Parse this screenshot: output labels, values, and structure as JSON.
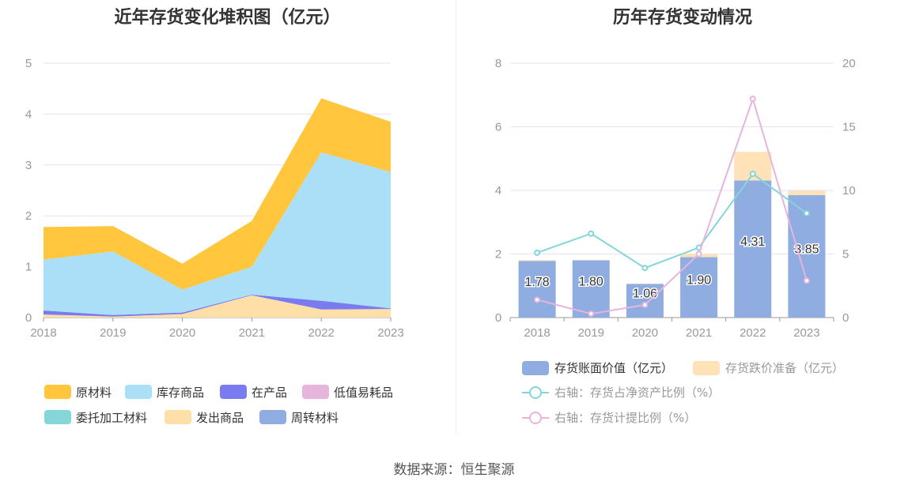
{
  "source_note": "数据来源：恒生聚源",
  "chart_data": [
    {
      "type": "area",
      "stacked": true,
      "title": "近年存货变化堆积图（亿元）",
      "x": [
        "2018",
        "2019",
        "2020",
        "2021",
        "2022",
        "2023"
      ],
      "ylim": [
        0,
        5
      ],
      "yticks": [
        "0",
        "1",
        "2",
        "3",
        "4",
        "5"
      ],
      "grid": true,
      "legend_position": "bottom",
      "series": [
        {
          "name": "发出商品",
          "color": "#FFDFA8",
          "values": [
            0.06,
            0.02,
            0.07,
            0.44,
            0.16,
            0.17
          ]
        },
        {
          "name": "在产品",
          "color": "#7B7BF0",
          "values": [
            0.08,
            0.03,
            0.03,
            0.01,
            0.17,
            0.01
          ]
        },
        {
          "name": "低值易耗品",
          "color": "#E7B5DB",
          "values": [
            0.0,
            0.0,
            0.0,
            0.0,
            0.0,
            0.0
          ]
        },
        {
          "name": "库存商品",
          "color": "#ABDFF7",
          "values": [
            1.0,
            1.25,
            0.45,
            0.55,
            2.92,
            2.68
          ]
        },
        {
          "name": "原材料",
          "color": "#FFC63E",
          "values": [
            0.64,
            0.5,
            0.51,
            0.9,
            1.06,
            0.99
          ]
        },
        {
          "name": "委托加工材料",
          "color": "#84D6D8",
          "values": [
            0.0,
            0.0,
            0.0,
            0.0,
            0.0,
            0.0
          ]
        },
        {
          "name": "周转材料",
          "color": "#8FADE0",
          "values": [
            0.0,
            0.0,
            0.0,
            0.0,
            0.0,
            0.0
          ]
        }
      ],
      "legend_order": [
        "原材料",
        "库存商品",
        "在产品",
        "低值易耗品",
        "委托加工材料",
        "发出商品",
        "周转材料"
      ]
    },
    {
      "type": "bar",
      "stacked": true,
      "title": "历年存货变动情况",
      "x": [
        "2018",
        "2019",
        "2020",
        "2021",
        "2022",
        "2023"
      ],
      "ylim": [
        0,
        8
      ],
      "yticks": [
        "0",
        "2",
        "4",
        "6",
        "8"
      ],
      "y2lim": [
        0,
        20
      ],
      "y2ticks": [
        "0",
        "5",
        "10",
        "15",
        "20"
      ],
      "grid": true,
      "legend_position": "bottom",
      "series": [
        {
          "name": "存货账面价值（亿元）",
          "kind": "bar",
          "color": "#8FADE0",
          "values": [
            1.78,
            1.8,
            1.06,
            1.9,
            4.31,
            3.85
          ],
          "labels": [
            "1.78",
            "1.80",
            "1.06",
            "1.90",
            "4.31",
            "3.85"
          ]
        },
        {
          "name": "存货跌价准备（亿元）",
          "kind": "bar",
          "color": "#FFE2B8",
          "values": [
            0.03,
            0.01,
            0.01,
            0.1,
            0.9,
            0.14
          ]
        },
        {
          "name": "右轴：存货占净资产比例（%）",
          "kind": "line",
          "axis": "right",
          "color": "#84D6D8",
          "values": [
            5.1,
            6.6,
            3.9,
            5.5,
            11.3,
            8.2
          ]
        },
        {
          "name": "右轴：存货计提比例（%）",
          "kind": "line",
          "axis": "right",
          "color": "#E7B5DB",
          "values": [
            1.4,
            0.3,
            1.0,
            5.0,
            17.2,
            2.9
          ]
        }
      ]
    }
  ]
}
